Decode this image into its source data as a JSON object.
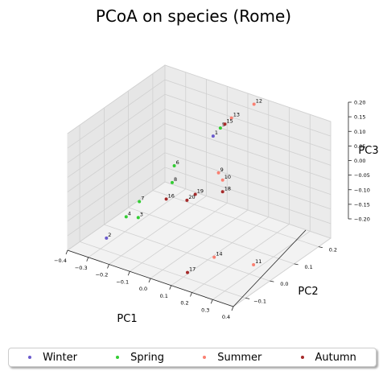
{
  "chart_data": {
    "type": "scatter3d",
    "title": "PCoA on species (Rome)",
    "xlabel": "PC1",
    "ylabel": "PC2",
    "zlabel": "PC3",
    "xlim": [
      -0.4,
      0.4
    ],
    "ylim": [
      -0.15,
      0.25
    ],
    "zlim": [
      -0.2,
      0.2
    ],
    "xticks": [
      "−0.4",
      "−0.3",
      "−0.2",
      "−0.1",
      "0.0",
      "0.1",
      "0.2",
      "0.3",
      "0.4"
    ],
    "yticks": [
      "−0.1",
      "0.0",
      "0.1",
      "0.2"
    ],
    "zticks": [
      "−0.20",
      "−0.15",
      "−0.10",
      "−0.05",
      "0.00",
      "0.05",
      "0.10",
      "0.15",
      "0.20"
    ],
    "grid": true,
    "legend_position": "bottom",
    "series": [
      {
        "name": "Winter",
        "color": "#6a5acd",
        "points": [
          {
            "label": "1",
            "x": -0.05,
            "y": 0.15,
            "z": 0.1
          },
          {
            "label": "2",
            "x": -0.33,
            "y": -0.05,
            "z": -0.2
          }
        ]
      },
      {
        "name": "Spring",
        "color": "#32cd32",
        "points": [
          {
            "label": "3",
            "x": -0.2,
            "y": -0.03,
            "z": -0.11
          },
          {
            "label": "4",
            "x": -0.27,
            "y": -0.02,
            "z": -0.13
          },
          {
            "label": "5",
            "x": -0.05,
            "y": 0.18,
            "z": 0.11
          },
          {
            "label": "6",
            "x": -0.12,
            "y": 0.05,
            "z": 0.04
          },
          {
            "label": "7",
            "x": -0.23,
            "y": 0.0,
            "z": -0.08
          },
          {
            "label": "8",
            "x": -0.13,
            "y": 0.05,
            "z": -0.02
          }
        ]
      },
      {
        "name": "Summer",
        "color": "#fa8072",
        "points": [
          {
            "label": "9",
            "x": 0.07,
            "y": 0.07,
            "z": 0.05
          },
          {
            "label": "10",
            "x": 0.09,
            "y": 0.07,
            "z": 0.03
          },
          {
            "label": "11",
            "x": 0.38,
            "y": -0.05,
            "z": -0.12
          },
          {
            "label": "12",
            "x": 0.03,
            "y": 0.25,
            "z": 0.17
          },
          {
            "label": "13",
            "x": -0.02,
            "y": 0.2,
            "z": 0.14
          },
          {
            "label": "14",
            "x": 0.19,
            "y": -0.05,
            "z": -0.14
          }
        ]
      },
      {
        "name": "Autumn",
        "color": "#a52a2a",
        "points": [
          {
            "label": "15",
            "x": -0.04,
            "y": 0.19,
            "z": 0.12
          },
          {
            "label": "16",
            "x": -0.1,
            "y": 0.0,
            "z": -0.04
          },
          {
            "label": "17",
            "x": 0.12,
            "y": -0.1,
            "z": -0.18
          },
          {
            "label": "18",
            "x": 0.09,
            "y": 0.07,
            "z": -0.01
          },
          {
            "label": "19",
            "x": 0.04,
            "y": 0.0,
            "z": 0.01
          },
          {
            "label": "20",
            "x": 0.0,
            "y": 0.0,
            "z": -0.02
          }
        ]
      }
    ]
  }
}
